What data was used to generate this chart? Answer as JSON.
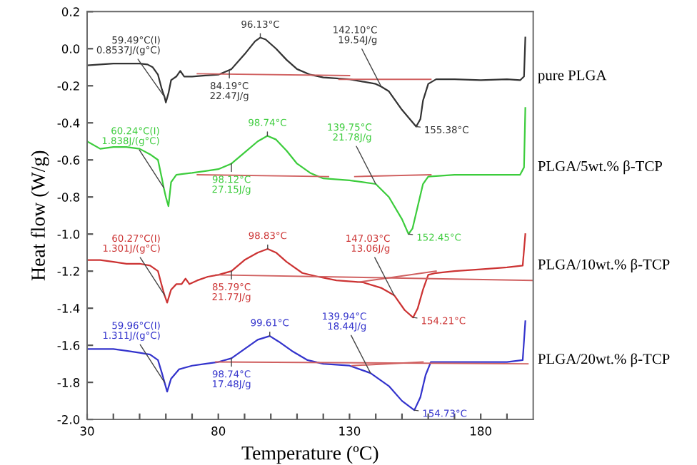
{
  "chart_data": {
    "type": "line",
    "xlabel": "Temperature (ºC)",
    "ylabel": "Heat flow (W/g)",
    "xlim": [
      30,
      200
    ],
    "ylim": [
      -2.0,
      0.2
    ],
    "xticks": [
      30,
      {
        "value": 40,
        "label": null
      },
      {
        "value": 50,
        "label": null
      },
      {
        "value": 60,
        "label": null
      },
      {
        "value": 70,
        "label": null
      },
      80,
      {
        "value": 90,
        "label": null
      },
      {
        "value": 100,
        "label": null
      },
      {
        "value": 110,
        "label": null
      },
      {
        "value": 120,
        "label": null
      },
      130,
      {
        "value": 140,
        "label": null
      },
      {
        "value": 150,
        "label": null
      },
      {
        "value": 160,
        "label": null
      },
      {
        "value": 170,
        "label": null
      },
      180,
      {
        "value": 190,
        "label": null
      }
    ],
    "yticks": [
      0.2,
      {
        "value": 0,
        "label": "0.0"
      },
      -0.2,
      -0.4,
      -0.6,
      -0.8,
      {
        "value": -1,
        "label": "-1.0"
      },
      -1.2,
      -1.4,
      -1.6,
      -1.8,
      {
        "value": -2,
        "label": "-2.0"
      }
    ],
    "grid": false,
    "legend": false,
    "marker": "none",
    "line_style": "solid",
    "series": [
      {
        "name": "pure PLGA",
        "color": "#333333",
        "x": [
          30,
          35,
          40,
          45,
          50,
          53,
          55,
          57,
          58.5,
          59.5,
          60,
          61,
          62,
          64,
          65.5,
          67,
          70,
          75,
          80,
          84.2,
          85,
          90,
          94,
          96,
          98,
          102,
          106,
          110,
          115,
          120,
          130,
          140,
          142.1,
          145,
          150,
          155.4,
          157,
          158,
          160,
          163,
          170,
          180,
          190,
          195,
          196.5,
          197
        ],
        "values": [
          -0.09,
          -0.085,
          -0.08,
          -0.08,
          -0.08,
          -0.085,
          -0.1,
          -0.14,
          -0.22,
          -0.26,
          -0.29,
          -0.24,
          -0.17,
          -0.15,
          -0.12,
          -0.15,
          -0.15,
          -0.145,
          -0.14,
          -0.115,
          -0.11,
          -0.03,
          0.04,
          0.06,
          0.05,
          0.0,
          -0.06,
          -0.11,
          -0.14,
          -0.155,
          -0.165,
          -0.19,
          -0.205,
          -0.23,
          -0.33,
          -0.42,
          -0.38,
          -0.28,
          -0.19,
          -0.165,
          -0.165,
          -0.17,
          -0.165,
          -0.17,
          -0.15,
          0.06
        ]
      },
      {
        "name": "PLGA/5wt.% β-TCP",
        "color": "#3ccc3c",
        "x": [
          30,
          35,
          40,
          45,
          50,
          54,
          57,
          58.5,
          59.2,
          60,
          61,
          62,
          64,
          70,
          75,
          80,
          85,
          90,
          95,
          98.7,
          102,
          106,
          110,
          115,
          120,
          130,
          140,
          145,
          150,
          152.5,
          154,
          156,
          158,
          160,
          170,
          180,
          190,
          195,
          196.5,
          197
        ],
        "values": [
          -0.5,
          -0.54,
          -0.53,
          -0.53,
          -0.54,
          -0.57,
          -0.6,
          -0.7,
          -0.75,
          -0.8,
          -0.85,
          -0.72,
          -0.68,
          -0.67,
          -0.66,
          -0.65,
          -0.62,
          -0.56,
          -0.5,
          -0.47,
          -0.49,
          -0.55,
          -0.62,
          -0.67,
          -0.7,
          -0.71,
          -0.73,
          -0.8,
          -0.92,
          -1.0,
          -0.97,
          -0.85,
          -0.73,
          -0.69,
          -0.68,
          -0.68,
          -0.68,
          -0.68,
          -0.64,
          -0.32
        ]
      },
      {
        "name": "PLGA/10wt.% β-TCP",
        "color": "#cc3333",
        "x": [
          30,
          35,
          40,
          45,
          50,
          54,
          57,
          58.5,
          59.5,
          60.5,
          62,
          64,
          66,
          67.5,
          69,
          72,
          76,
          80,
          85,
          90,
          95,
          98.8,
          102,
          106,
          112,
          118,
          125,
          135,
          142,
          147,
          151,
          154.2,
          156,
          158,
          160,
          163,
          170,
          180,
          190,
          196,
          197
        ],
        "values": [
          -1.14,
          -1.14,
          -1.15,
          -1.16,
          -1.16,
          -1.17,
          -1.2,
          -1.28,
          -1.33,
          -1.37,
          -1.3,
          -1.27,
          -1.27,
          -1.24,
          -1.27,
          -1.25,
          -1.23,
          -1.22,
          -1.2,
          -1.14,
          -1.1,
          -1.08,
          -1.1,
          -1.15,
          -1.21,
          -1.23,
          -1.25,
          -1.26,
          -1.29,
          -1.33,
          -1.41,
          -1.45,
          -1.4,
          -1.3,
          -1.22,
          -1.21,
          -1.2,
          -1.19,
          -1.18,
          -1.17,
          -1.0
        ]
      },
      {
        "name": "PLGA/20wt.% β-TCP",
        "color": "#3333cc",
        "x": [
          30,
          35,
          40,
          45,
          50,
          54,
          57,
          58.5,
          59.5,
          60.5,
          62,
          65,
          70,
          75,
          80,
          85,
          90,
          95,
          99.6,
          103,
          108,
          114,
          120,
          130,
          138,
          145,
          150,
          154.7,
          157,
          159,
          161,
          170,
          180,
          190,
          196,
          197
        ],
        "values": [
          -1.62,
          -1.62,
          -1.62,
          -1.63,
          -1.64,
          -1.65,
          -1.68,
          -1.75,
          -1.8,
          -1.85,
          -1.78,
          -1.73,
          -1.71,
          -1.7,
          -1.69,
          -1.67,
          -1.62,
          -1.57,
          -1.55,
          -1.58,
          -1.63,
          -1.68,
          -1.7,
          -1.71,
          -1.75,
          -1.82,
          -1.9,
          -1.95,
          -1.88,
          -1.76,
          -1.69,
          -1.69,
          -1.69,
          -1.69,
          -1.68,
          -1.47
        ]
      },
      {
        "color": "#d06060",
        "x": [
          72,
          130
        ],
        "values": [
          -0.135,
          -0.145
        ]
      },
      {
        "color": "#d06060",
        "x": [
          126,
          161
        ],
        "values": [
          -0.165,
          -0.165
        ]
      },
      {
        "color": "#d06060",
        "x": [
          72,
          122
        ],
        "values": [
          -0.68,
          -0.69
        ]
      },
      {
        "color": "#d06060",
        "x": [
          132,
          161
        ],
        "values": [
          -0.69,
          -0.68
        ]
      },
      {
        "color": "#d06060",
        "x": [
          79,
          200
        ],
        "values": [
          -1.22,
          -1.25
        ]
      },
      {
        "color": "#d06060",
        "x": [
          133,
          163
        ],
        "values": [
          -1.26,
          -1.2
        ]
      },
      {
        "color": "#d06060",
        "x": [
          79,
          198
        ],
        "values": [
          -1.69,
          -1.7
        ]
      },
      {
        "color": "#d06060",
        "x": [
          131,
          158
        ],
        "values": [
          -1.71,
          -1.69
        ]
      }
    ],
    "annotations": [
      {
        "text": "59.49°C(I)\n0.8537J/(g°C)",
        "x": 59.5,
        "y": -0.26
      },
      {
        "text": "96.13°C",
        "x": 96,
        "y": 0.06
      },
      {
        "text": "84.19°C\n22.47J/g",
        "x": 84.2,
        "y": -0.115
      },
      {
        "text": "142.10°C\n19.54J/g",
        "x": 142.1,
        "y": -0.205
      },
      {
        "text": "155.38°C",
        "x": 155.4,
        "y": -0.42
      },
      {
        "text": "60.24°C(I)\n1.838J/(g°C)",
        "x": 59.2,
        "y": -0.75
      },
      {
        "text": "98.74°C",
        "x": 98.7,
        "y": -0.47
      },
      {
        "text": "98.12°C\n27.15J/g",
        "x": 85,
        "y": -0.62
      },
      {
        "text": "139.75°C\n21.78J/g",
        "x": 140,
        "y": -0.73
      },
      {
        "text": "152.45°C",
        "x": 152.5,
        "y": -1.0
      },
      {
        "text": "60.27°C(I)\n1.301J/(g°C)",
        "x": 59.5,
        "y": -1.33
      },
      {
        "text": "98.83°C",
        "x": 98.8,
        "y": -1.08
      },
      {
        "text": "85.79°C\n21.77J/g",
        "x": 85,
        "y": -1.2
      },
      {
        "text": "147.03°C\n13.06J/g",
        "x": 147,
        "y": -1.33
      },
      {
        "text": "154.21°C",
        "x": 154.2,
        "y": -1.45
      },
      {
        "text": "59.96°C(I)\n1.311J/(g°C)",
        "x": 59.5,
        "y": -1.8
      },
      {
        "text": "99.61°C",
        "x": 99.6,
        "y": -1.55
      },
      {
        "text": "98.74°C\n17.48J/g",
        "x": 85,
        "y": -1.67
      },
      {
        "text": "139.94°C\n18.44J/g",
        "x": 138,
        "y": -1.75
      },
      {
        "text": "154.73°C",
        "x": 154.7,
        "y": -1.95
      }
    ]
  }
}
